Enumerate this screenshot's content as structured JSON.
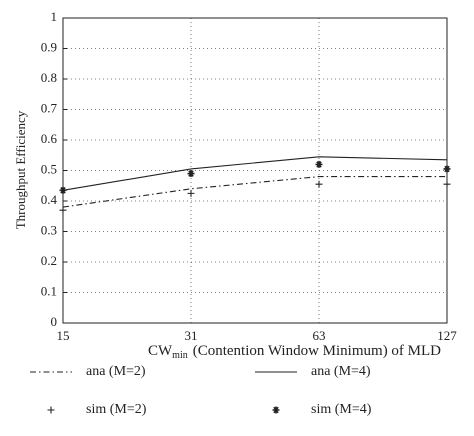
{
  "chart_data": {
    "type": "line",
    "ylabel": "Throughput Efficiency",
    "xlabel": {
      "main": "CW",
      "sub": "min",
      "rest": "(Contention Window Minimum) of MLD"
    },
    "categories": [
      "15",
      "31",
      "63",
      "127"
    ],
    "ylim": [
      0,
      1
    ],
    "yticks": [
      0,
      0.1,
      0.2,
      0.3,
      0.4,
      0.5,
      0.6,
      0.7,
      0.8,
      0.9,
      1
    ],
    "grid": true,
    "series": [
      {
        "name": "ana (M=2)",
        "color": "#222222",
        "style": "dash-dot",
        "values": [
          0.38,
          0.44,
          0.48,
          0.48
        ]
      },
      {
        "name": "ana (M=4)",
        "color": "#222222",
        "style": "solid",
        "values": [
          0.435,
          0.505,
          0.545,
          0.535
        ]
      },
      {
        "name": "sim (M=2)",
        "color": "#222222",
        "style": "plus",
        "values": [
          0.37,
          0.425,
          0.455,
          0.455
        ]
      },
      {
        "name": "sim (M=4)",
        "color": "#222222",
        "style": "star",
        "values": [
          0.435,
          0.49,
          0.52,
          0.505
        ]
      }
    ]
  }
}
